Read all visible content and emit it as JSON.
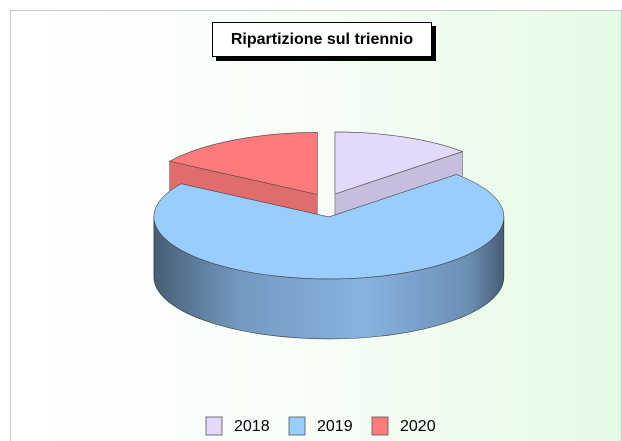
{
  "chart_data": {
    "type": "pie",
    "title": "Ripartizione sul triennio",
    "categories": [
      "2018",
      "2019",
      "2020"
    ],
    "values": [
      13,
      71,
      16
    ],
    "colors": [
      "#e2d9fb",
      "#99ccff",
      "#ff7b7b"
    ],
    "legend": "bottom"
  }
}
